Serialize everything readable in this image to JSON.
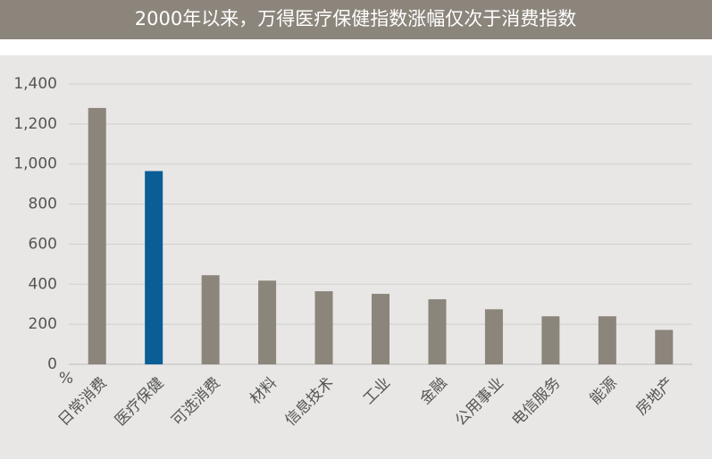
{
  "chart_data": {
    "type": "bar",
    "title": "2000年以来，万得医疗保健指数涨幅仅次于消费指数",
    "y_unit": "%",
    "categories": [
      "日常消费",
      "医疗保健",
      "可选消费",
      "材料",
      "信息技术",
      "工业",
      "金融",
      "公用事业",
      "电信服务",
      "能源",
      "房地产"
    ],
    "values": [
      1280,
      965,
      445,
      418,
      365,
      352,
      325,
      275,
      240,
      240,
      172
    ],
    "colors": [
      "#8c857b",
      "#0a5e96",
      "#8c857b",
      "#8c857b",
      "#8c857b",
      "#8c857b",
      "#8c857b",
      "#8c857b",
      "#8c857b",
      "#8c857b",
      "#8c857b"
    ],
    "ylim": [
      0,
      1400
    ],
    "yticks": [
      0,
      200,
      400,
      600,
      800,
      {
        "value": 1000,
        "label": "1,000"
      },
      {
        "value": 1200,
        "label": "1,200"
      },
      {
        "value": 1400,
        "label": "1,400"
      }
    ],
    "grid": true
  }
}
